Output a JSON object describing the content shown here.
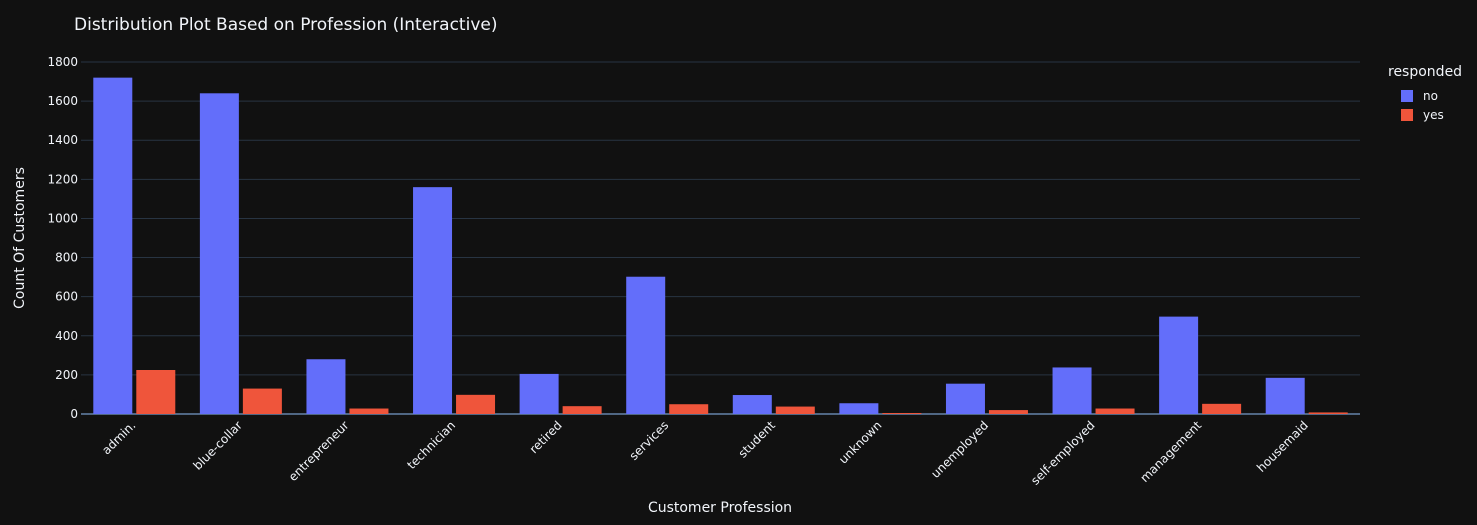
{
  "chart_data": {
    "type": "bar",
    "title": "Distribution Plot Based on Profession (Interactive)",
    "xlabel": "Customer Profession",
    "ylabel": "Count Of Customers",
    "ylim": [
      0,
      1800
    ],
    "yticks": [
      0,
      200,
      400,
      600,
      800,
      1000,
      1200,
      1400,
      1600,
      1800
    ],
    "grid": true,
    "legend_position": "top-right",
    "legend_title": "responded",
    "categories": [
      "admin.",
      "blue-collar",
      "entrepreneur",
      "technician",
      "retired",
      "services",
      "student",
      "unknown",
      "unemployed",
      "self-employed",
      "management",
      "housemaid"
    ],
    "series": [
      {
        "name": "no",
        "color": "#636efa",
        "values": [
          1720,
          1640,
          280,
          1160,
          205,
          702,
          97,
          55,
          155,
          238,
          498,
          185
        ]
      },
      {
        "name": "yes",
        "color": "#ef553b",
        "values": [
          225,
          130,
          28,
          98,
          40,
          50,
          38,
          5,
          20,
          28,
          52,
          8
        ]
      }
    ]
  }
}
